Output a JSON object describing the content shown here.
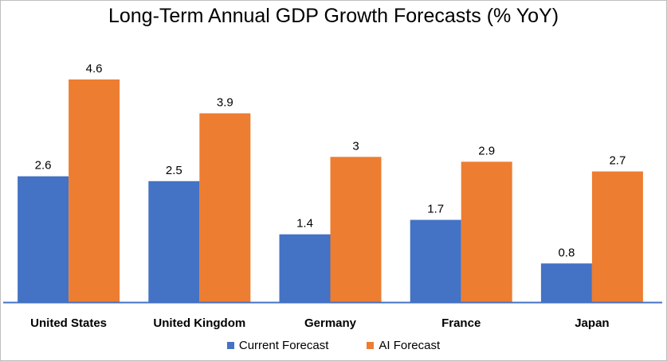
{
  "chart_data": {
    "type": "bar",
    "title": "Long-Term Annual GDP Growth Forecasts (% YoY)",
    "categories": [
      "United States",
      "United Kingdom",
      "Germany",
      "France",
      "Japan"
    ],
    "series": [
      {
        "name": "Current Forecast",
        "color": "#4472c4",
        "values": [
          2.6,
          2.5,
          1.4,
          1.7,
          0.8
        ]
      },
      {
        "name": "AI Forecast",
        "color": "#ed7d31",
        "values": [
          4.6,
          3.9,
          3,
          2.9,
          2.7
        ]
      }
    ],
    "ylim": [
      0,
      5
    ],
    "grid": false,
    "legend": "bottom",
    "data_labels": true
  }
}
